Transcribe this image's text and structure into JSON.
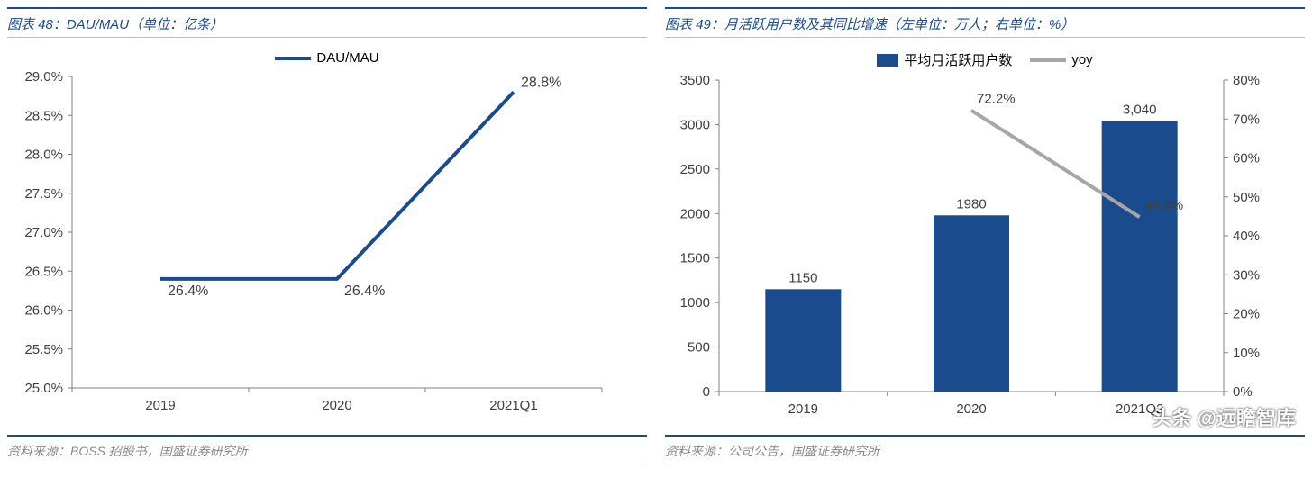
{
  "left": {
    "title": "图表 48：DAU/MAU（单位：亿条）",
    "source": "资料来源：BOSS 招股书，国盛证券研究所",
    "legend": {
      "series_label": "DAU/MAU"
    },
    "chart": {
      "type": "line",
      "categories": [
        "2019",
        "2020",
        "2021Q1"
      ],
      "values": [
        26.4,
        26.4,
        28.8
      ],
      "value_labels": [
        "26.4%",
        "26.4%",
        "28.8%"
      ],
      "ylim": [
        25.0,
        29.0
      ],
      "ytick_step": 0.5,
      "ytick_labels": [
        "25.0%",
        "25.5%",
        "26.0%",
        "26.5%",
        "27.0%",
        "27.5%",
        "28.0%",
        "28.5%",
        "29.0%"
      ],
      "line_color": "#1a4b8c",
      "line_width": 4,
      "text_color": "#404040",
      "axis_color": "#808080",
      "tick_font_size": 15,
      "label_font_size": 16,
      "background_color": "#ffffff"
    }
  },
  "right": {
    "title": "图表 49：月活跃用户数及其同比增速（左单位：万人；右单位：%）",
    "source": "资料来源：公司公告，国盛证券研究所",
    "legend": {
      "bar_label": "平均月活跃用户数",
      "line_label": "yoy"
    },
    "chart": {
      "type": "bar-line",
      "categories": [
        "2019",
        "2020",
        "2021Q2"
      ],
      "bar_values": [
        1150,
        1980,
        3040
      ],
      "bar_labels": [
        "1150",
        "1980",
        "3,040"
      ],
      "bar_color": "#1a4b8c",
      "bar_width": 0.45,
      "line_values": [
        null,
        72.2,
        44.8
      ],
      "line_labels": [
        "",
        "72.2%",
        "44.8%"
      ],
      "line_color": "#a6a6a6",
      "line_width": 4,
      "left_ylim": [
        0,
        3500
      ],
      "left_ytick_step": 500,
      "left_ytick_labels": [
        "0",
        "500",
        "1000",
        "1500",
        "2000",
        "2500",
        "3000",
        "3500"
      ],
      "right_ylim": [
        0,
        80
      ],
      "right_ytick_step": 10,
      "right_ytick_labels": [
        "0%",
        "10%",
        "20%",
        "30%",
        "40%",
        "50%",
        "60%",
        "70%",
        "80%"
      ],
      "text_color": "#404040",
      "axis_color": "#808080",
      "tick_font_size": 15,
      "label_font_size": 15,
      "background_color": "#ffffff"
    }
  },
  "watermark": "头条 @远瞻智库"
}
